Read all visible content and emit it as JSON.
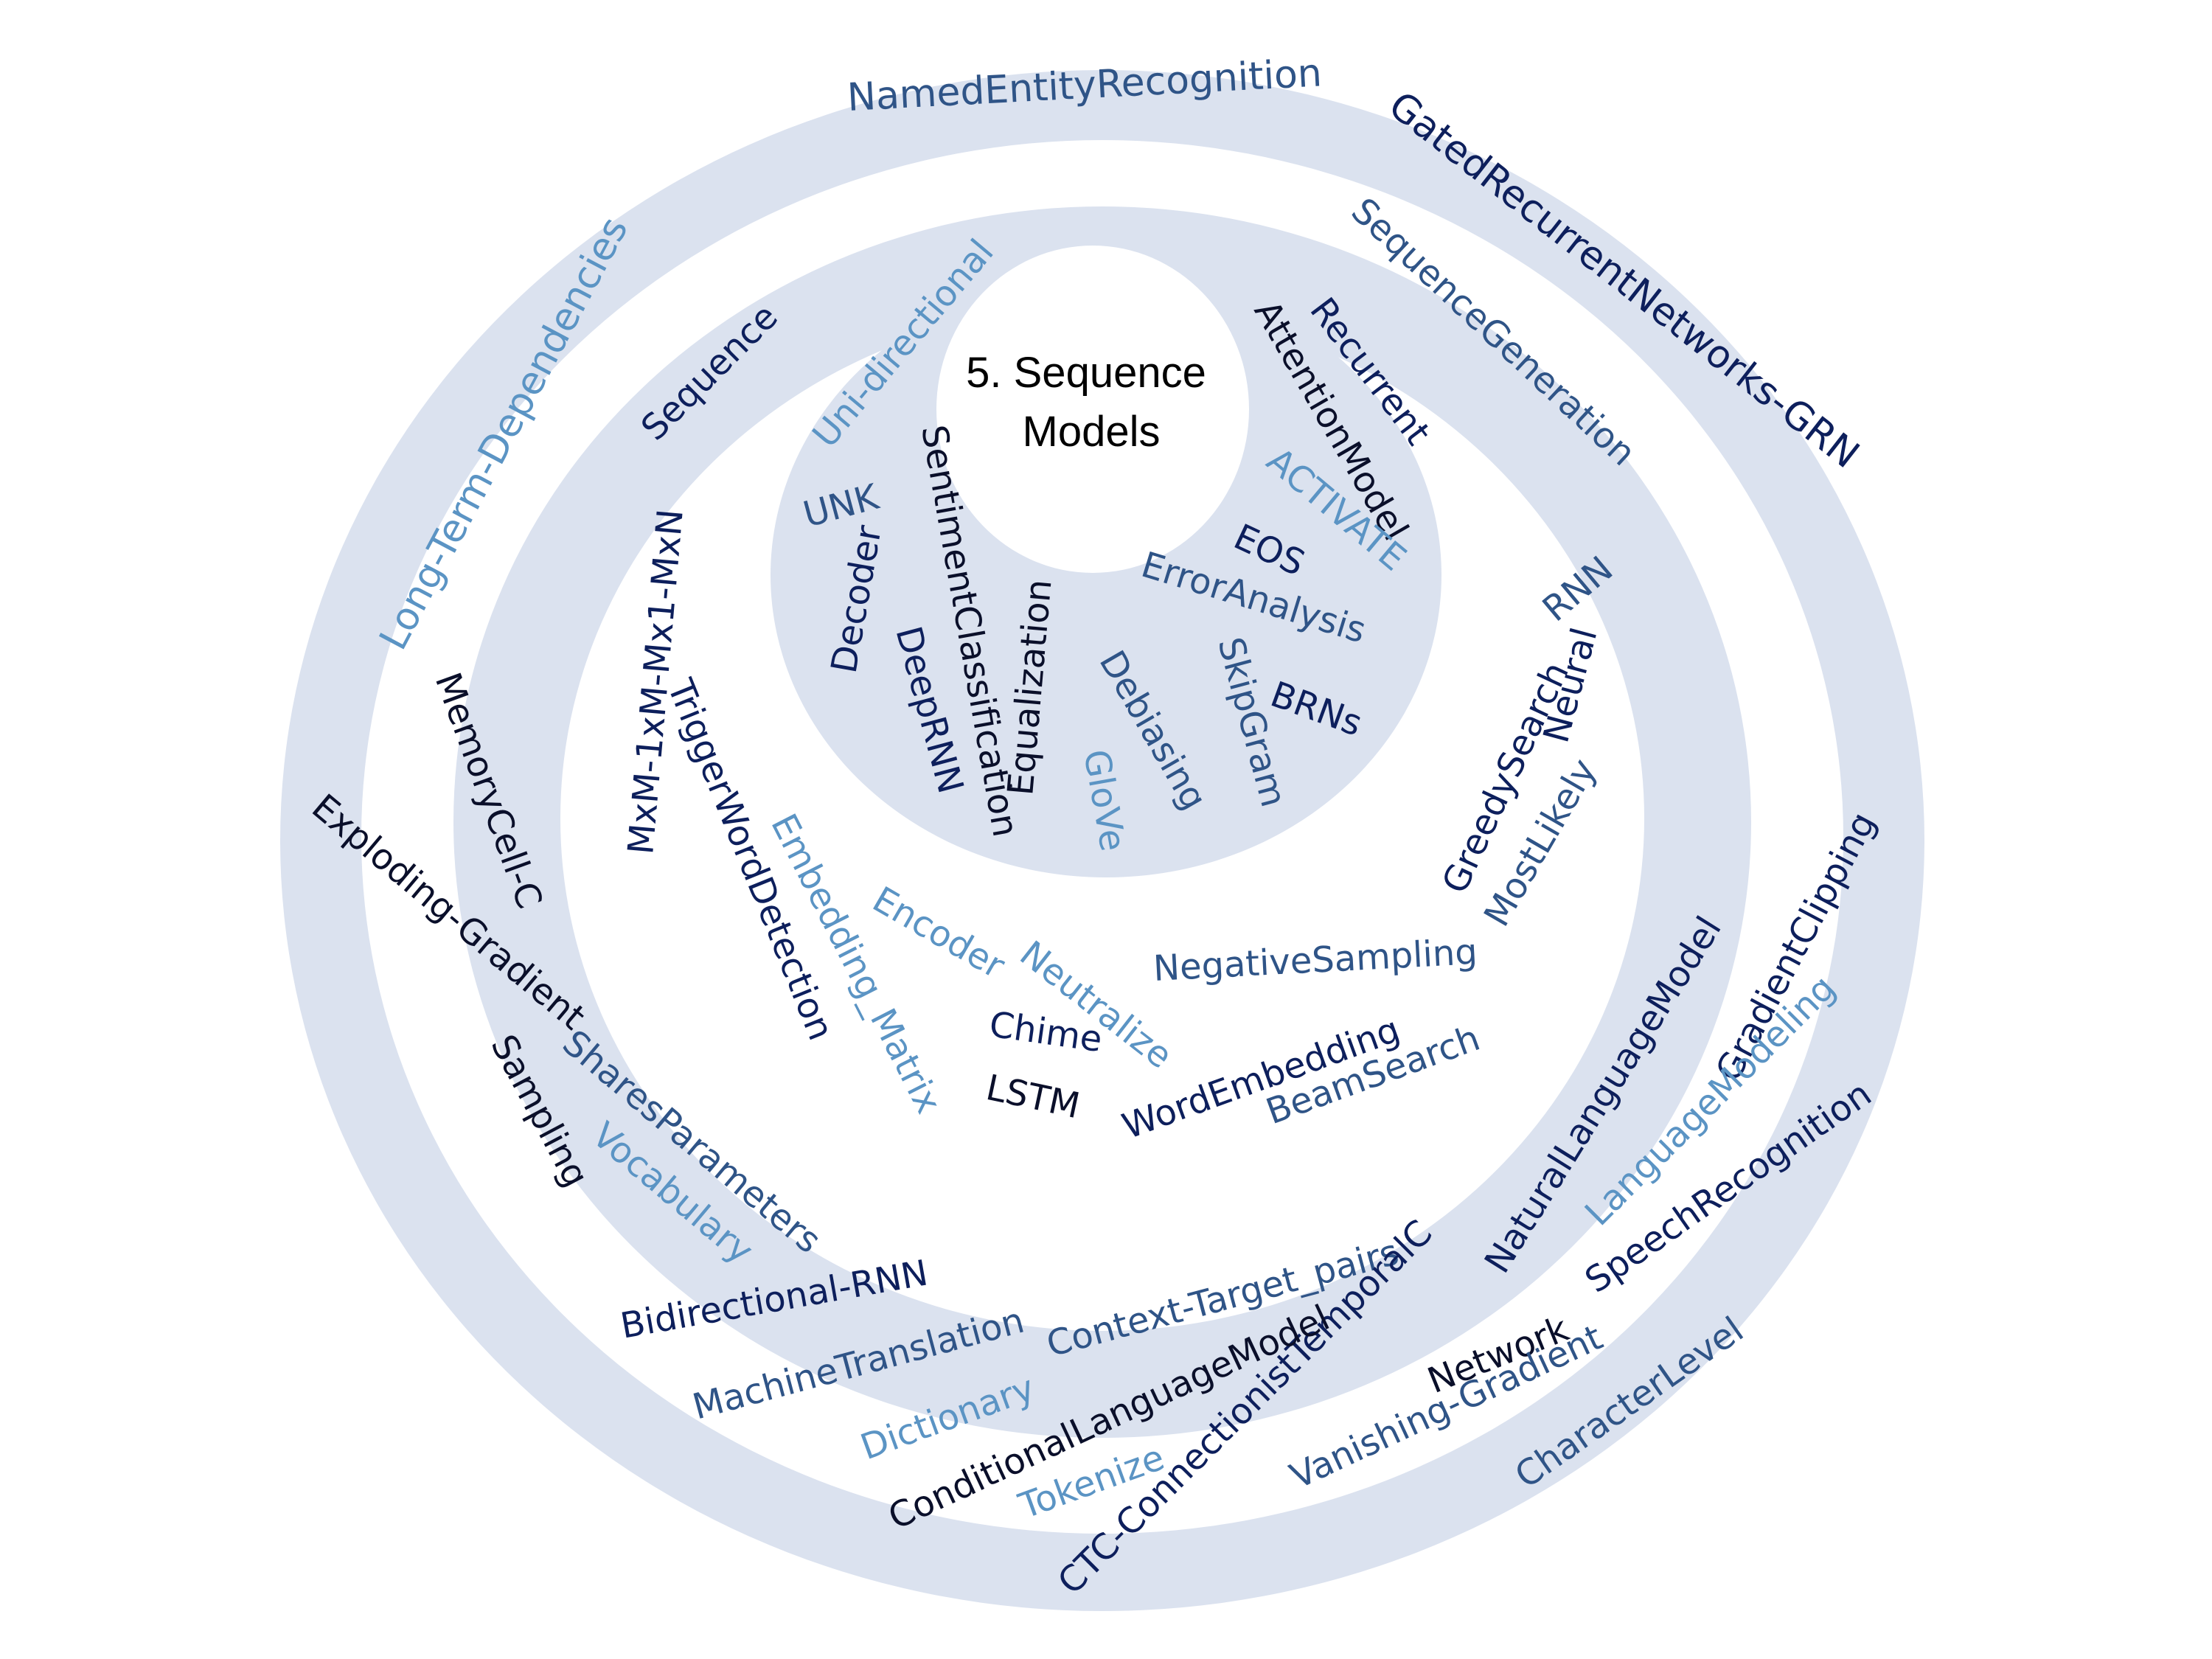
{
  "title": {
    "line1": "5. Sequence",
    "line2": "Models"
  },
  "colors": {
    "ring_fill": "#dbe2ef",
    "background": "#ffffff",
    "dark": "#0d1f5c",
    "medium": "#2f5487",
    "light": "#5b94c4",
    "black": "#0a0f2a"
  },
  "terms": {
    "named_entity_recognition": "NamedEntityRecognition",
    "gated_recurrent_networks": "GatedRecurrentNetworks-GRN",
    "long_term_dependencies": "Long-Term-Dependencies",
    "sequence_generation": "SequenceGeneration",
    "sequence": "Sequence",
    "uni_directional": "Uni-directional",
    "recurrent": "Recurrent",
    "attention_model": "AttentionModel",
    "unk": "UNK",
    "sentiment_classification": "SentimentClassification",
    "activate": "ACTIVATE",
    "mxm": "MxM-1xM-Mx1-MxN",
    "eos": "EOS",
    "decoder": "Decoder",
    "error_analysis": "ErrorAnalysis",
    "rnn": "RNN",
    "equalization": "Equalization",
    "deep_rnn": "DeepRNN",
    "debiasing": "Debiasing",
    "skipgram": "SkipGram",
    "neural": "Neural",
    "brns": "BRNs",
    "greedy_search": "GreedySearch",
    "memory_cell": "MemoryCell-C",
    "trigger_word_detection": "TriggerWordDetection",
    "glove": "GloVe",
    "most_likely": "MostLikely",
    "exploding_gradient": "Exploding-Gradient",
    "embedding_matrix": "Embedding_Matrix",
    "gradient_clipping": "GradientClipping",
    "encoder": "Encoder",
    "negative_sampling": "NegativeSampling",
    "neutralize": "Neutralize",
    "natural_language_model": "NaturalLanguageModel",
    "word_embedding": "WordEmbedding",
    "chime": "Chime",
    "sampling": "Sampling",
    "shares_parameters": "SharesParameters",
    "beam_search": "BeamSearch",
    "lstm": "LSTM",
    "language_modeling": "LanguageModeling",
    "vocabulary": "Vocabulary",
    "speech_recognition": "SpeechRecognition",
    "bidirectional_rnn": "Bidirectional-RNN",
    "context_target_pairs": "Context-Target_pairs",
    "machine_translation": "MachineTranslation",
    "network": "Network",
    "ctc": "CTC-ConnectionistTemporalC",
    "conditional_language_model": "ConditionalLanguageModel",
    "dictionary": "Dictionary",
    "vanishing_gradient": "Vanishing-Gradient",
    "character_level": "CharacterLevel",
    "tokenize": "Tokenize"
  }
}
